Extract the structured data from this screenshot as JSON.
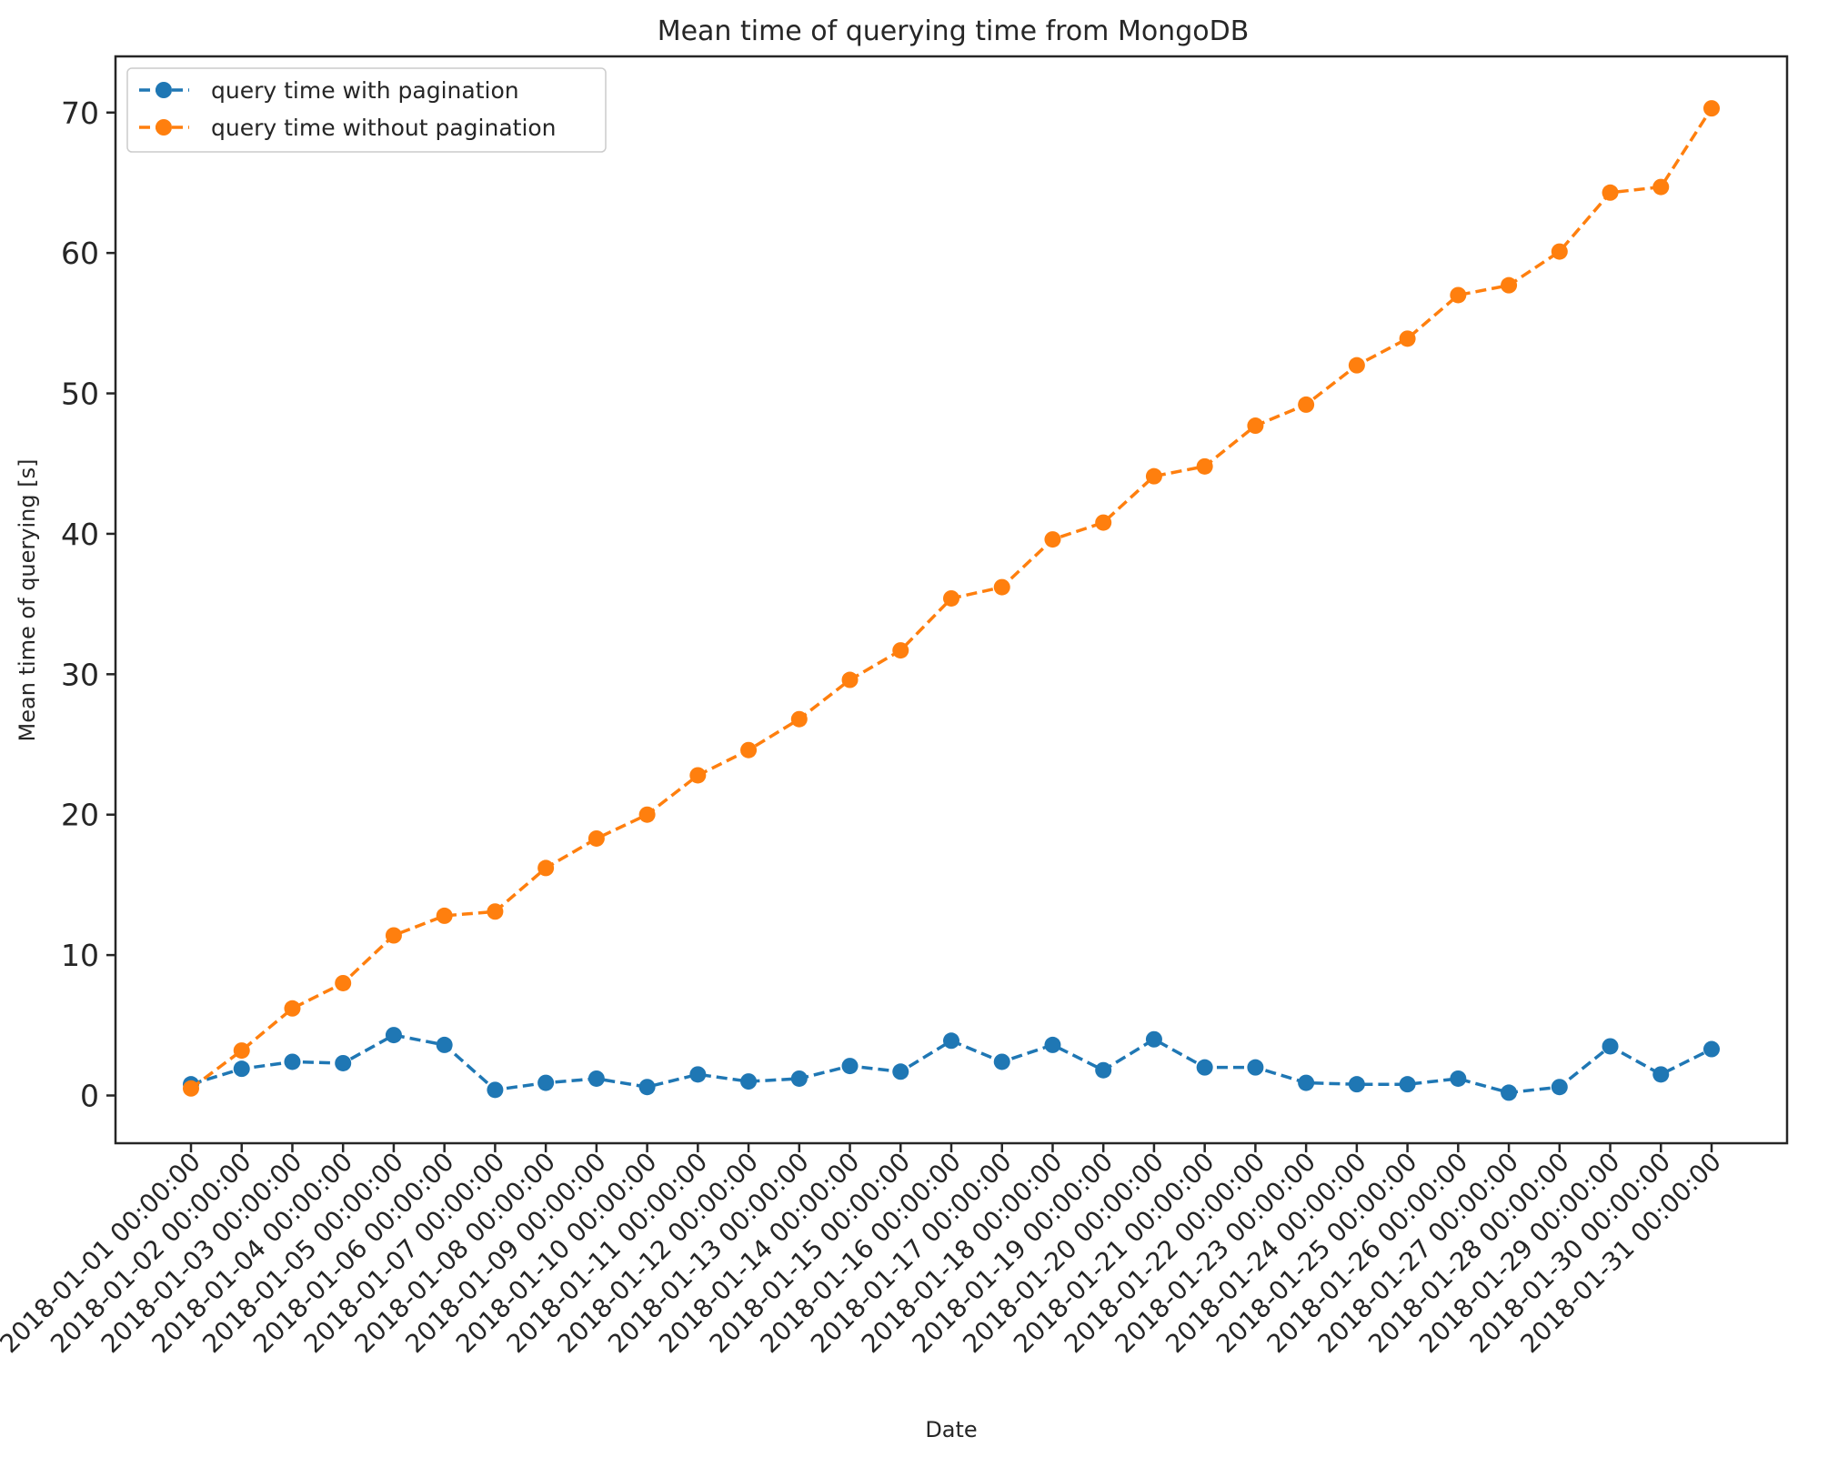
{
  "chart_data": {
    "type": "line",
    "title": "Mean time of querying time from MongoDB",
    "xlabel": "Date",
    "ylabel": "Mean time of querying [s]",
    "ylim": [
      -3.4,
      74
    ],
    "yticks": [
      0,
      10,
      20,
      30,
      40,
      50,
      60,
      70
    ],
    "grid": false,
    "legend_position": "top-left",
    "categories": [
      "2018-01-01 00:00:00",
      "2018-01-02 00:00:00",
      "2018-01-03 00:00:00",
      "2018-01-04 00:00:00",
      "2018-01-05 00:00:00",
      "2018-01-06 00:00:00",
      "2018-01-07 00:00:00",
      "2018-01-08 00:00:00",
      "2018-01-09 00:00:00",
      "2018-01-10 00:00:00",
      "2018-01-11 00:00:00",
      "2018-01-12 00:00:00",
      "2018-01-13 00:00:00",
      "2018-01-14 00:00:00",
      "2018-01-15 00:00:00",
      "2018-01-16 00:00:00",
      "2018-01-17 00:00:00",
      "2018-01-18 00:00:00",
      "2018-01-19 00:00:00",
      "2018-01-20 00:00:00",
      "2018-01-21 00:00:00",
      "2018-01-22 00:00:00",
      "2018-01-23 00:00:00",
      "2018-01-24 00:00:00",
      "2018-01-25 00:00:00",
      "2018-01-26 00:00:00",
      "2018-01-27 00:00:00",
      "2018-01-28 00:00:00",
      "2018-01-29 00:00:00",
      "2018-01-30 00:00:00",
      "2018-01-31 00:00:00"
    ],
    "series": [
      {
        "name": "query time with pagination",
        "color": "#1f77b4",
        "values": [
          0.8,
          1.9,
          2.4,
          2.3,
          4.3,
          3.6,
          0.4,
          0.9,
          1.2,
          0.6,
          1.5,
          1.0,
          1.2,
          2.1,
          1.7,
          3.9,
          2.4,
          3.6,
          1.8,
          4.0,
          2.0,
          2.0,
          0.9,
          0.8,
          0.8,
          1.2,
          0.2,
          0.6,
          3.5,
          1.5,
          3.3
        ]
      },
      {
        "name": "query time without pagination",
        "color": "#ff7f0e",
        "values": [
          0.5,
          3.2,
          6.2,
          8.0,
          11.4,
          12.8,
          13.1,
          16.2,
          18.3,
          20.0,
          22.8,
          24.6,
          26.8,
          29.6,
          31.7,
          35.4,
          36.2,
          39.6,
          40.8,
          44.1,
          44.8,
          47.7,
          49.2,
          52.0,
          53.9,
          57.0,
          57.7,
          60.1,
          64.3,
          64.7,
          70.3
        ]
      }
    ]
  }
}
